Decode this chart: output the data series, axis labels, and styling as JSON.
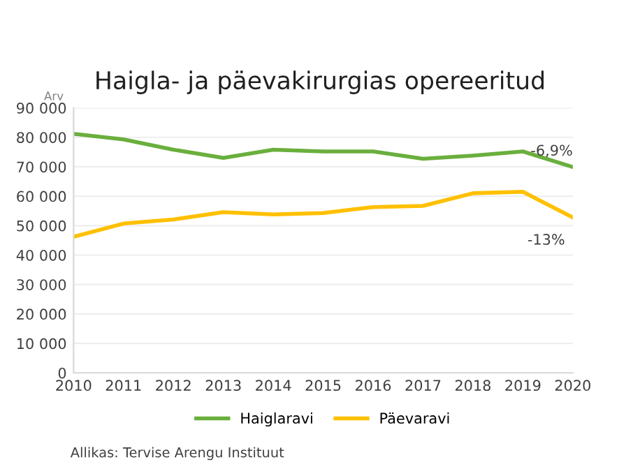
{
  "chart_data": {
    "type": "line",
    "title": "Haigla- ja päevakirurgias opereeritud",
    "ylabel": "Arv",
    "x": [
      2010,
      2011,
      2012,
      2013,
      2014,
      2015,
      2016,
      2017,
      2018,
      2019,
      2020
    ],
    "series": [
      {
        "name": "Haiglaravi",
        "color": "#6aaf3d",
        "values": [
          81200,
          79300,
          75800,
          73000,
          75800,
          75200,
          75200,
          72700,
          73800,
          75200,
          69900
        ]
      },
      {
        "name": "Päevaravi",
        "color": "#ffc000",
        "values": [
          46200,
          50700,
          52100,
          54600,
          53800,
          54300,
          56300,
          56700,
          61000,
          61500,
          52800
        ]
      }
    ],
    "xlim": [
      2010,
      2020
    ],
    "xticks": [
      2010,
      2011,
      2012,
      2013,
      2014,
      2015,
      2016,
      2017,
      2018,
      2019,
      2020
    ],
    "ylim": [
      0,
      90000
    ],
    "yticks": [
      {
        "value": 0,
        "label": "0"
      },
      {
        "value": 10000,
        "label": "10 000"
      },
      {
        "value": 20000,
        "label": "20 000"
      },
      {
        "value": 30000,
        "label": "30 000"
      },
      {
        "value": 40000,
        "label": "40 000"
      },
      {
        "value": 50000,
        "label": "50 000"
      },
      {
        "value": 60000,
        "label": "60 000"
      },
      {
        "value": 70000,
        "label": "70 000"
      },
      {
        "value": 80000,
        "label": "80 000"
      },
      {
        "value": 90000,
        "label": "90 000"
      }
    ],
    "grid": "y",
    "legend": "bottom",
    "marker": "none",
    "line_style": "solid",
    "annotations": [
      {
        "text": "-6,9%",
        "x": 2020,
        "y": 69900
      },
      {
        "text": "-13%",
        "x": 2020,
        "y": 52800
      },
      "Allikas: Tervise Arengu Instituut"
    ]
  }
}
